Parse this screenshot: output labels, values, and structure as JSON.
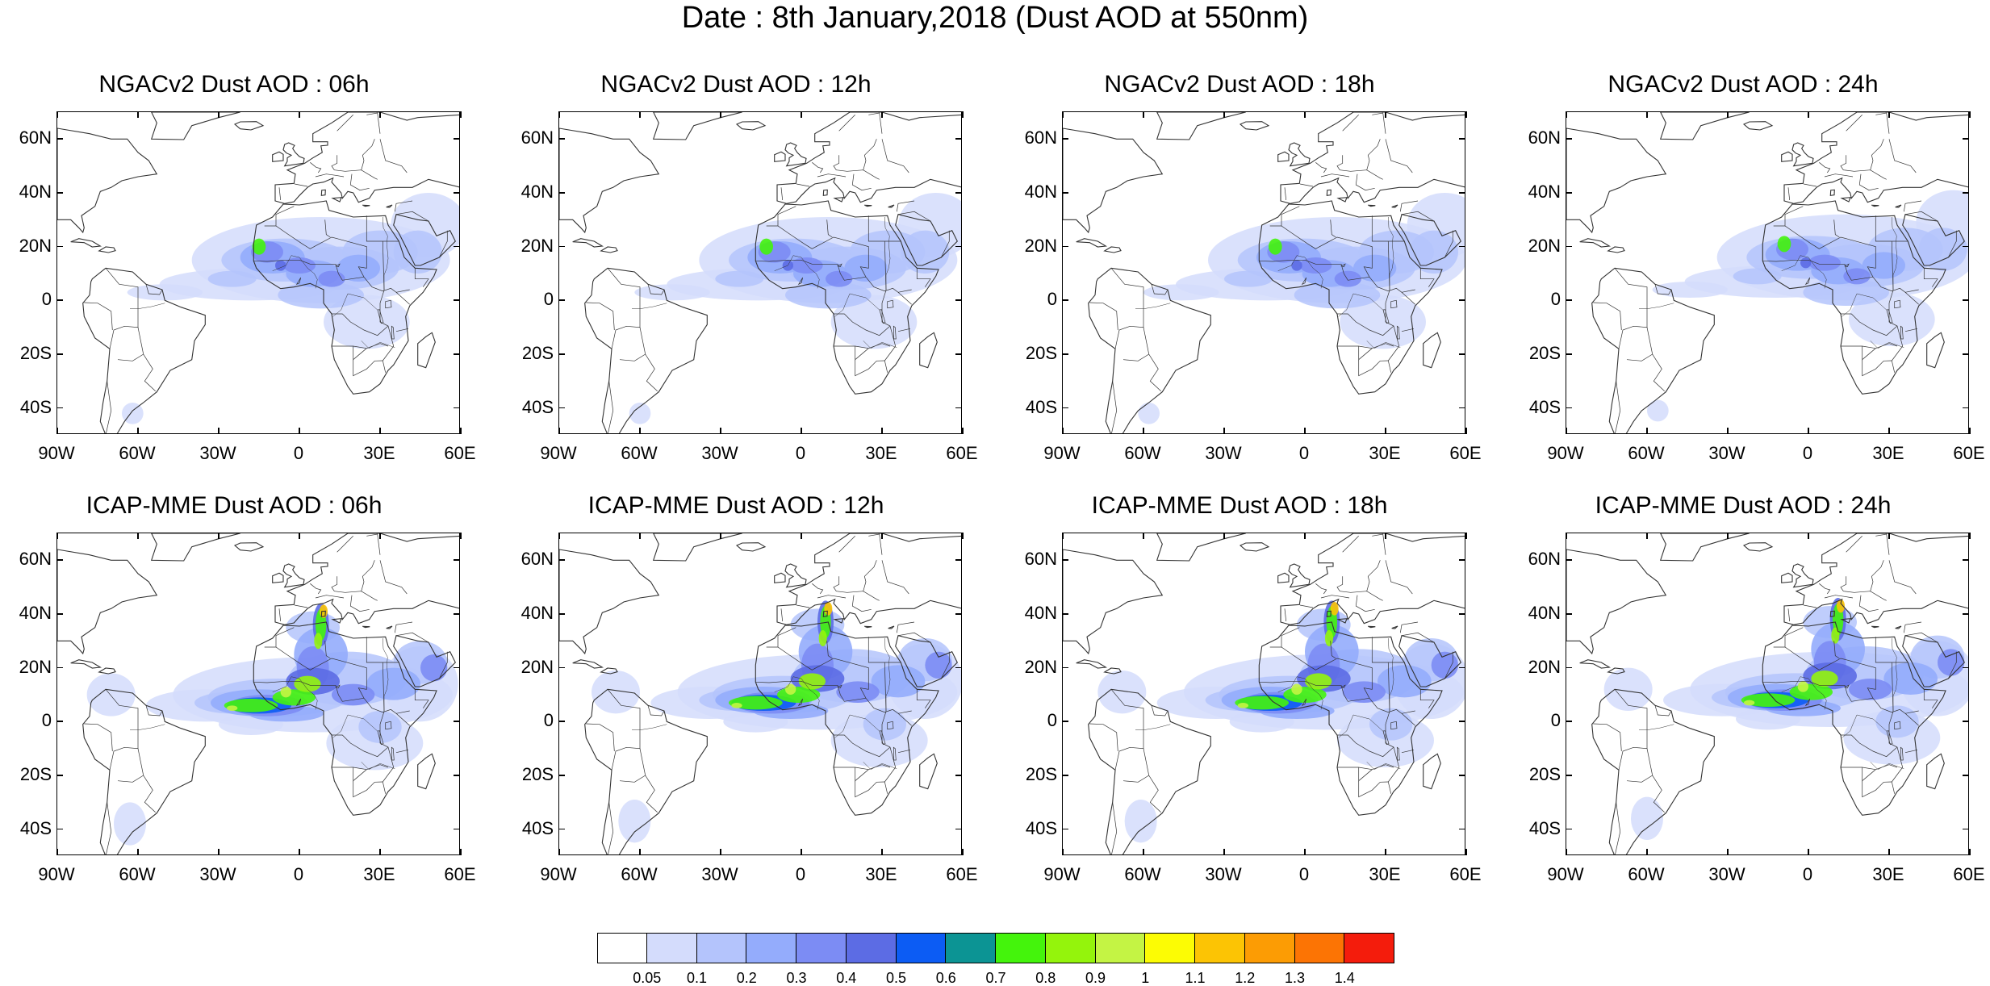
{
  "title": "Date : 8th January,2018 (Dust AOD at 550nm)",
  "lat_labels": [
    "60N",
    "40N",
    "20N",
    "0",
    "20S",
    "40S"
  ],
  "lat_values": [
    60,
    40,
    20,
    0,
    -20,
    -40
  ],
  "lon_labels": [
    "90W",
    "60W",
    "30W",
    "0",
    "30E",
    "60E"
  ],
  "lon_values": [
    -90,
    -60,
    -30,
    0,
    30,
    60
  ],
  "map_extent": {
    "lon": [
      -90,
      60
    ],
    "lat": [
      -50,
      70
    ]
  },
  "panels": [
    {
      "title": "NGACv2 Dust AOD : 06h",
      "model": "NGACv2",
      "hour": "06h"
    },
    {
      "title": "NGACv2 Dust AOD : 12h",
      "model": "NGACv2",
      "hour": "12h"
    },
    {
      "title": "NGACv2 Dust AOD : 18h",
      "model": "NGACv2",
      "hour": "18h"
    },
    {
      "title": "NGACv2 Dust AOD : 24h",
      "model": "NGACv2",
      "hour": "24h"
    },
    {
      "title": "ICAP-MME Dust AOD : 06h",
      "model": "ICAP-MME",
      "hour": "06h"
    },
    {
      "title": "ICAP-MME Dust AOD : 12h",
      "model": "ICAP-MME",
      "hour": "12h"
    },
    {
      "title": "ICAP-MME Dust AOD : 18h",
      "model": "ICAP-MME",
      "hour": "18h"
    },
    {
      "title": "ICAP-MME Dust AOD : 24h",
      "model": "ICAP-MME",
      "hour": "24h"
    }
  ],
  "colorbar": {
    "labels": [
      "0.05",
      "0.1",
      "0.2",
      "0.3",
      "0.4",
      "0.5",
      "0.6",
      "0.7",
      "0.8",
      "0.9",
      "1",
      "1.1",
      "1.2",
      "1.3",
      "1.4"
    ],
    "colors": [
      "#ffffff",
      "#d4dcfc",
      "#b4c4fc",
      "#94acfc",
      "#7c8cf4",
      "#5c6ce4",
      "#0c5cf4",
      "#0c9494",
      "#44f40c",
      "#94f40c",
      "#c4f444",
      "#fcfc04",
      "#fcc404",
      "#fc9c04",
      "#fc7404",
      "#f41c0c"
    ]
  },
  "map_style": {
    "land_outline": "#333333",
    "frame": "#000000"
  }
}
